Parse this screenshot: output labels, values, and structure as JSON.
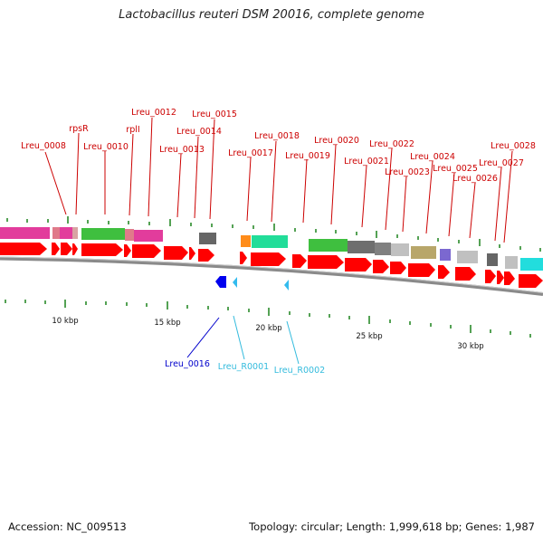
{
  "title": "Lactobacillus reuteri DSM 20016, complete genome",
  "footer": {
    "accession": "Accession: NC_009513",
    "details": "Topology: circular; Length: 1,999,618 bp; Genes: 1,987"
  },
  "scale_ticks": [
    "10 kbp",
    "15 kbp",
    "20 kbp",
    "25 kbp",
    "30 kbp"
  ],
  "colors": {
    "cds": "#ff0000",
    "label_red": "#cc0000",
    "label_blue": "#0000cc",
    "label_cyan": "#33bbdd",
    "backbone": "#888888",
    "tick": "#2a8a2a"
  },
  "top_labels": [
    "Lreu_0008",
    "rpsR",
    "Lreu_0010",
    "rplI",
    "Lreu_0012",
    "Lreu_0013",
    "Lreu_0014",
    "Lreu_0015",
    "Lreu_0017",
    "Lreu_0018",
    "Lreu_0019",
    "Lreu_0020",
    "Lreu_0021",
    "Lreu_0022",
    "Lreu_0023",
    "Lreu_0024",
    "Lreu_0025",
    "Lreu_0026",
    "Lreu_0027",
    "Lreu_0028"
  ],
  "bottom_labels": [
    {
      "text": "Lreu_0016",
      "kind": "blue"
    },
    {
      "text": "Lreu_R0001",
      "kind": "cyan"
    },
    {
      "text": "Lreu_R0002",
      "kind": "cyan"
    }
  ]
}
